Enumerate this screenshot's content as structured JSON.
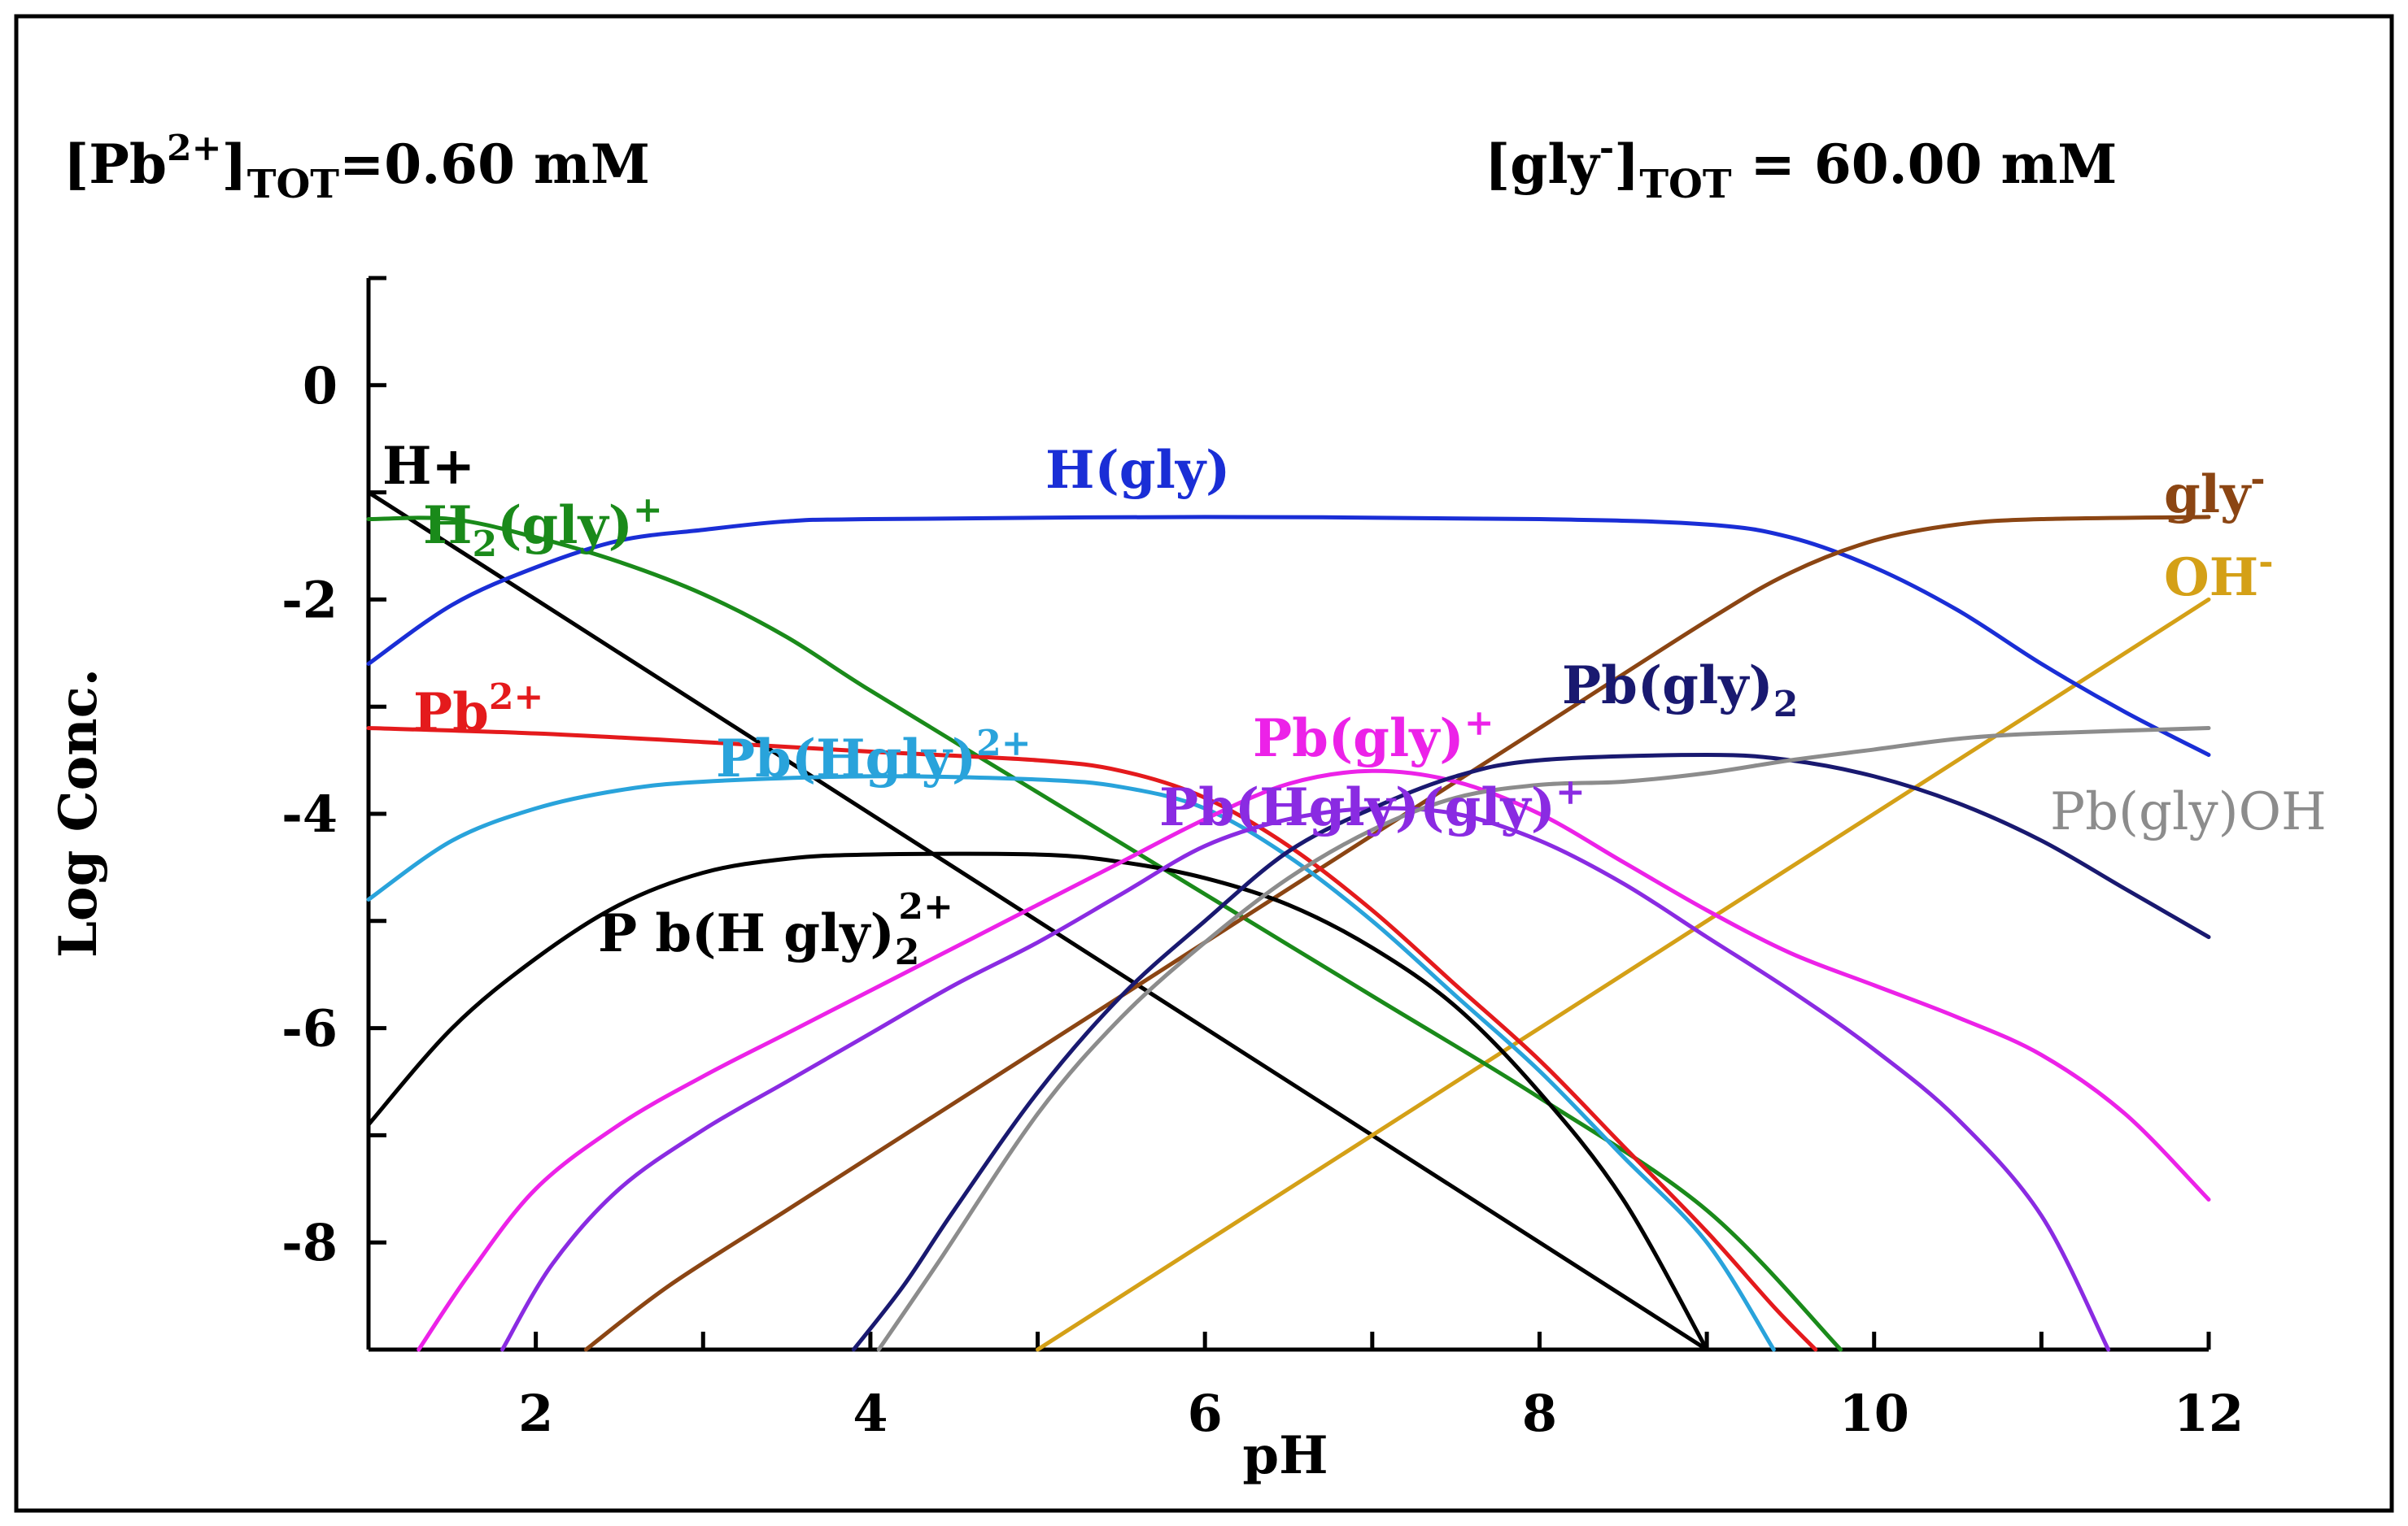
{
  "conditions": {
    "pb_prefix": "[Pb",
    "pb_charge": "2+",
    "pb_bracket": "]",
    "pb_sub": "TOT",
    "pb_value": "=0.60 mM",
    "gly_prefix": "[gly",
    "gly_charge": "-",
    "gly_bracket": "]",
    "gly_sub": "TOT",
    "gly_value": " = 60.00 mM"
  },
  "chart_data": {
    "type": "line",
    "xlabel": "pH",
    "ylabel": "Log Conc.",
    "xlim": [
      1,
      12
    ],
    "ylim": [
      -9,
      1
    ],
    "xticks": [
      2,
      4,
      6,
      8,
      10,
      12
    ],
    "yticks": [
      0,
      -2,
      -4,
      -6,
      -8
    ],
    "xtick_labels": [
      "2",
      "4",
      "6",
      "8",
      "10",
      "12"
    ],
    "ytick_labels": [
      "0",
      "-2",
      "-4",
      "-6",
      "-8"
    ],
    "series": [
      {
        "id": "h-plus",
        "name": "H+",
        "color": "#000000",
        "points": [
          [
            1,
            -1
          ],
          [
            9,
            -9
          ]
        ]
      },
      {
        "id": "oh-minus",
        "name": "OH-",
        "color": "#d4a017",
        "points": [
          [
            5,
            -9
          ],
          [
            12,
            -2
          ]
        ]
      },
      {
        "id": "h2gly-plus",
        "name": "H2(gly)+",
        "color": "#1a8a1a",
        "points": [
          [
            1,
            -1.25
          ],
          [
            1.5,
            -1.25
          ],
          [
            2,
            -1.42
          ],
          [
            2.5,
            -1.65
          ],
          [
            3,
            -1.95
          ],
          [
            3.5,
            -2.35
          ],
          [
            4,
            -2.85
          ],
          [
            5,
            -3.8
          ],
          [
            6,
            -4.75
          ],
          [
            7,
            -5.7
          ],
          [
            8,
            -6.65
          ],
          [
            9,
            -7.7
          ],
          [
            9.8,
            -9
          ]
        ]
      },
      {
        "id": "hgly",
        "name": "H(gly)",
        "color": "#1a2ed6",
        "points": [
          [
            1,
            -2.6
          ],
          [
            1.5,
            -2.05
          ],
          [
            2,
            -1.7
          ],
          [
            2.5,
            -1.45
          ],
          [
            3,
            -1.35
          ],
          [
            3.5,
            -1.27
          ],
          [
            4,
            -1.25
          ],
          [
            6,
            -1.23
          ],
          [
            8,
            -1.25
          ],
          [
            9,
            -1.3
          ],
          [
            9.5,
            -1.42
          ],
          [
            10,
            -1.7
          ],
          [
            10.5,
            -2.1
          ],
          [
            11,
            -2.6
          ],
          [
            11.5,
            -3.05
          ],
          [
            12,
            -3.45
          ]
        ]
      },
      {
        "id": "gly-minus",
        "name": "gly-",
        "color": "#8b4513",
        "points": [
          [
            2.3,
            -9
          ],
          [
            2.8,
            -8.4
          ],
          [
            3.5,
            -7.7
          ],
          [
            4,
            -7.2
          ],
          [
            5,
            -6.2
          ],
          [
            6,
            -5.2
          ],
          [
            7,
            -4.2
          ],
          [
            8,
            -3.2
          ],
          [
            9,
            -2.2
          ],
          [
            9.5,
            -1.75
          ],
          [
            10,
            -1.45
          ],
          [
            10.5,
            -1.3
          ],
          [
            11,
            -1.25
          ],
          [
            12,
            -1.23
          ]
        ]
      },
      {
        "id": "pb2-plus",
        "name": "Pb2+",
        "color": "#e41a1c",
        "points": [
          [
            1,
            -3.2
          ],
          [
            2,
            -3.25
          ],
          [
            3,
            -3.33
          ],
          [
            4,
            -3.42
          ],
          [
            5,
            -3.5
          ],
          [
            5.5,
            -3.6
          ],
          [
            6,
            -3.85
          ],
          [
            6.5,
            -4.3
          ],
          [
            7,
            -4.9
          ],
          [
            7.5,
            -5.6
          ],
          [
            8,
            -6.3
          ],
          [
            8.5,
            -7.1
          ],
          [
            9,
            -7.9
          ],
          [
            9.4,
            -8.6
          ],
          [
            9.65,
            -9
          ]
        ]
      },
      {
        "id": "pbhgly2-plus",
        "name": "Pb(Hgly)2+",
        "color": "#29a3db",
        "points": [
          [
            1,
            -4.8
          ],
          [
            1.5,
            -4.25
          ],
          [
            2,
            -3.95
          ],
          [
            2.5,
            -3.78
          ],
          [
            3,
            -3.7
          ],
          [
            4,
            -3.65
          ],
          [
            5,
            -3.68
          ],
          [
            5.5,
            -3.75
          ],
          [
            6,
            -3.95
          ],
          [
            6.5,
            -4.4
          ],
          [
            7,
            -5.0
          ],
          [
            7.5,
            -5.7
          ],
          [
            8,
            -6.4
          ],
          [
            8.5,
            -7.2
          ],
          [
            9,
            -8.0
          ],
          [
            9.4,
            -9
          ]
        ]
      },
      {
        "id": "pbhgly2-2plus",
        "name": "Pb(Hgly)2 2+",
        "color": "#000000",
        "points": [
          [
            1,
            -6.9
          ],
          [
            1.5,
            -6.0
          ],
          [
            2,
            -5.35
          ],
          [
            2.5,
            -4.85
          ],
          [
            3,
            -4.55
          ],
          [
            3.5,
            -4.42
          ],
          [
            4,
            -4.38
          ],
          [
            5,
            -4.38
          ],
          [
            5.5,
            -4.45
          ],
          [
            6,
            -4.6
          ],
          [
            6.5,
            -4.85
          ],
          [
            7,
            -5.25
          ],
          [
            7.5,
            -5.8
          ],
          [
            8,
            -6.6
          ],
          [
            8.5,
            -7.6
          ],
          [
            9,
            -9
          ]
        ]
      },
      {
        "id": "pbgly-plus",
        "name": "Pb(gly)+",
        "color": "#ec22e8",
        "points": [
          [
            1.3,
            -9
          ],
          [
            1.6,
            -8.3
          ],
          [
            2,
            -7.5
          ],
          [
            2.5,
            -6.9
          ],
          [
            3,
            -6.45
          ],
          [
            3.5,
            -6.05
          ],
          [
            4,
            -5.65
          ],
          [
            4.5,
            -5.25
          ],
          [
            5,
            -4.85
          ],
          [
            5.5,
            -4.45
          ],
          [
            6,
            -4.05
          ],
          [
            6.5,
            -3.72
          ],
          [
            7,
            -3.6
          ],
          [
            7.5,
            -3.7
          ],
          [
            8,
            -4.0
          ],
          [
            8.5,
            -4.45
          ],
          [
            9,
            -4.9
          ],
          [
            9.5,
            -5.3
          ],
          [
            10,
            -5.6
          ],
          [
            10.5,
            -5.9
          ],
          [
            11,
            -6.25
          ],
          [
            11.5,
            -6.8
          ],
          [
            12,
            -7.6
          ]
        ]
      },
      {
        "id": "pbhgly-gly-plus",
        "name": "Pb(Hgly)(gly)+",
        "color": "#8a2be2",
        "points": [
          [
            1.8,
            -9
          ],
          [
            2.1,
            -8.2
          ],
          [
            2.5,
            -7.5
          ],
          [
            3,
            -6.95
          ],
          [
            3.5,
            -6.5
          ],
          [
            4,
            -6.05
          ],
          [
            4.5,
            -5.6
          ],
          [
            5,
            -5.2
          ],
          [
            5.5,
            -4.75
          ],
          [
            6,
            -4.3
          ],
          [
            6.5,
            -4.05
          ],
          [
            7,
            -3.95
          ],
          [
            7.5,
            -4.0
          ],
          [
            8,
            -4.25
          ],
          [
            8.5,
            -4.65
          ],
          [
            9,
            -5.15
          ],
          [
            9.5,
            -5.65
          ],
          [
            10,
            -6.2
          ],
          [
            10.5,
            -6.85
          ],
          [
            11,
            -7.75
          ],
          [
            11.4,
            -9
          ]
        ]
      },
      {
        "id": "pbgly2",
        "name": "Pb(gly)2",
        "color": "#191970",
        "points": [
          [
            3.9,
            -9
          ],
          [
            4.2,
            -8.4
          ],
          [
            4.5,
            -7.7
          ],
          [
            5,
            -6.6
          ],
          [
            5.5,
            -5.7
          ],
          [
            6,
            -5.0
          ],
          [
            6.5,
            -4.35
          ],
          [
            7,
            -3.95
          ],
          [
            7.5,
            -3.65
          ],
          [
            8,
            -3.5
          ],
          [
            9,
            -3.45
          ],
          [
            9.5,
            -3.5
          ],
          [
            10,
            -3.65
          ],
          [
            10.5,
            -3.9
          ],
          [
            11,
            -4.25
          ],
          [
            11.5,
            -4.7
          ],
          [
            12,
            -5.15
          ]
        ]
      },
      {
        "id": "pbgly-oh",
        "name": "Pb(gly)OH",
        "color": "#8c8c8c",
        "points": [
          [
            4.05,
            -9
          ],
          [
            4.4,
            -8.2
          ],
          [
            5,
            -6.8
          ],
          [
            5.5,
            -5.9
          ],
          [
            6,
            -5.2
          ],
          [
            6.5,
            -4.6
          ],
          [
            7,
            -4.15
          ],
          [
            7.5,
            -3.85
          ],
          [
            8,
            -3.73
          ],
          [
            8.5,
            -3.7
          ],
          [
            9,
            -3.62
          ],
          [
            9.5,
            -3.5
          ],
          [
            10,
            -3.4
          ],
          [
            10.5,
            -3.3
          ],
          [
            11,
            -3.25
          ],
          [
            12,
            -3.2
          ]
        ]
      }
    ],
    "labels": {
      "h_plus": "H+",
      "oh_base": "OH",
      "oh_sup": "-",
      "h2gly_a": "H",
      "h2gly_sub": "2",
      "h2gly_b": "(gly)",
      "h2gly_sup": "+",
      "hgly": "H(gly)",
      "gly_base": "gly",
      "gly_sup": "-",
      "pb2_base": "Pb",
      "pb2_sup": "2+",
      "pbhgly_base": "Pb(Hgly)",
      "pbhgly_sup": "2+",
      "pbhgly2_base": "P b(H gly)",
      "pbhgly2_sub": "2",
      "pbhgly2_sup": "2+",
      "pbgly_base": "Pb(gly)",
      "pbgly_sup": "+",
      "pbhglygly_base": "Pb(Hgly)(gly)",
      "pbhglygly_sup": "+",
      "pbgly2_base": "Pb(gly)",
      "pbgly2_sub": "2",
      "pbglyoh": "Pb(gly)OH"
    }
  }
}
